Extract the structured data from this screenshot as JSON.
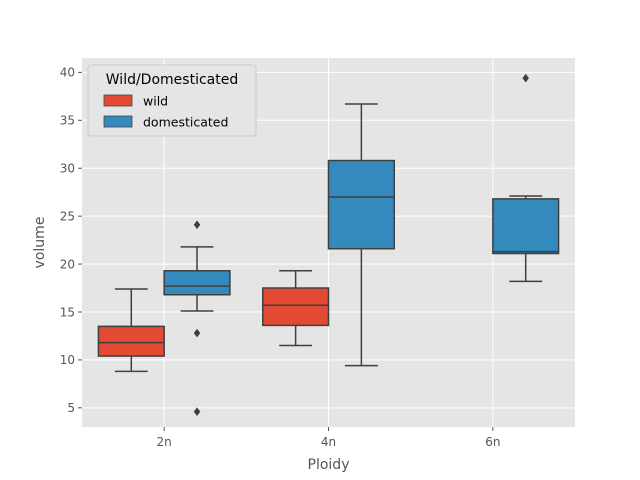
{
  "chart_data": {
    "type": "box",
    "xlabel": "Ploidy",
    "ylabel": "volume",
    "categories": [
      "2n",
      "4n",
      "6n"
    ],
    "ylim": [
      3,
      41.5
    ],
    "yticks": [
      5,
      10,
      15,
      20,
      25,
      30,
      35,
      40
    ],
    "grid": true,
    "legend": {
      "title": "Wild/Domesticated",
      "placement": "top-left"
    },
    "series": [
      {
        "name": "wild",
        "color": "#E24A33",
        "boxes": [
          {
            "category": "2n",
            "whisker_low": 8.8,
            "q1": 10.4,
            "median": 11.8,
            "q3": 13.5,
            "whisker_high": 17.4,
            "outliers": []
          },
          {
            "category": "4n",
            "whisker_low": 11.5,
            "q1": 13.6,
            "median": 15.7,
            "q3": 17.5,
            "whisker_high": 19.3,
            "outliers": []
          }
        ]
      },
      {
        "name": "domesticated",
        "color": "#348ABD",
        "boxes": [
          {
            "category": "2n",
            "whisker_low": 15.1,
            "q1": 16.8,
            "median": 17.7,
            "q3": 19.3,
            "whisker_high": 21.8,
            "outliers": [
              24.1,
              12.8,
              4.6
            ]
          },
          {
            "category": "4n",
            "whisker_low": 9.4,
            "q1": 21.6,
            "median": 27.0,
            "q3": 30.8,
            "whisker_high": 36.7,
            "outliers": []
          },
          {
            "category": "6n",
            "whisker_low": 18.2,
            "q1": 21.1,
            "median": 21.3,
            "q3": 26.8,
            "whisker_high": 27.1,
            "outliers": [
              39.4
            ]
          }
        ]
      }
    ]
  }
}
